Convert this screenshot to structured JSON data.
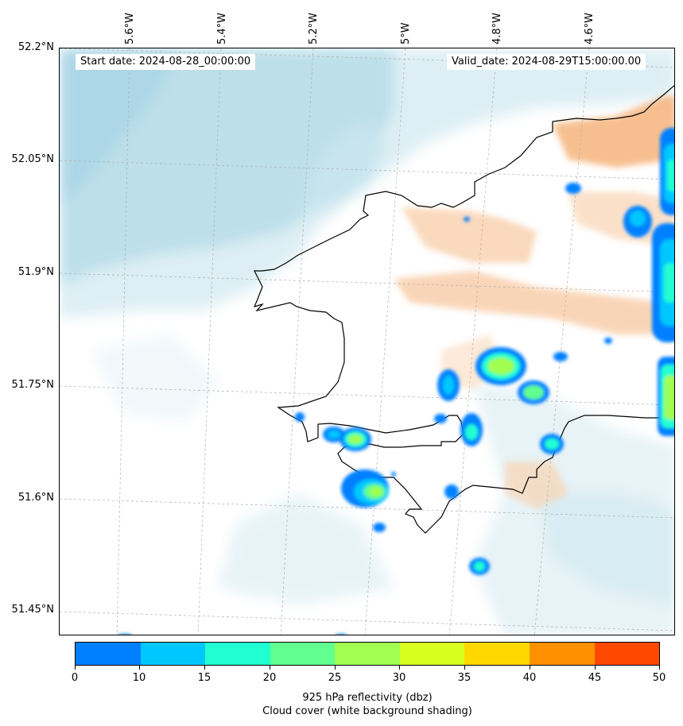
{
  "header": {
    "start_date": "Start date: 2024-08-28_00:00:00",
    "valid_date": "Valid_date: 2024-08-29T15:00:00.00"
  },
  "map": {
    "lon_labels": [
      "5.6°W",
      "5.4°W",
      "5.2°W",
      "5°W",
      "4.8°W",
      "4.6°W"
    ],
    "lat_labels": [
      "52.2°N",
      "52.05°N",
      "51.9°N",
      "51.75°N",
      "51.6°N",
      "51.45°N"
    ],
    "colors": {
      "cloud": "#add8e6",
      "land_warm": "#f4a460",
      "coastline": "#000000",
      "grid": "#b0b0b0"
    }
  },
  "colorbar": {
    "ticks": [
      "0",
      "10",
      "15",
      "20",
      "25",
      "30",
      "35",
      "40",
      "45",
      "50"
    ],
    "colors": [
      "#0080ff",
      "#00c8ff",
      "#20ffd0",
      "#60ff90",
      "#a0ff50",
      "#d8ff20",
      "#ffd800",
      "#ff9000",
      "#ff4800"
    ],
    "label_line1": "925 hPa reflectivity (dbz)",
    "label_line2": "Cloud cover (white background shading)"
  }
}
